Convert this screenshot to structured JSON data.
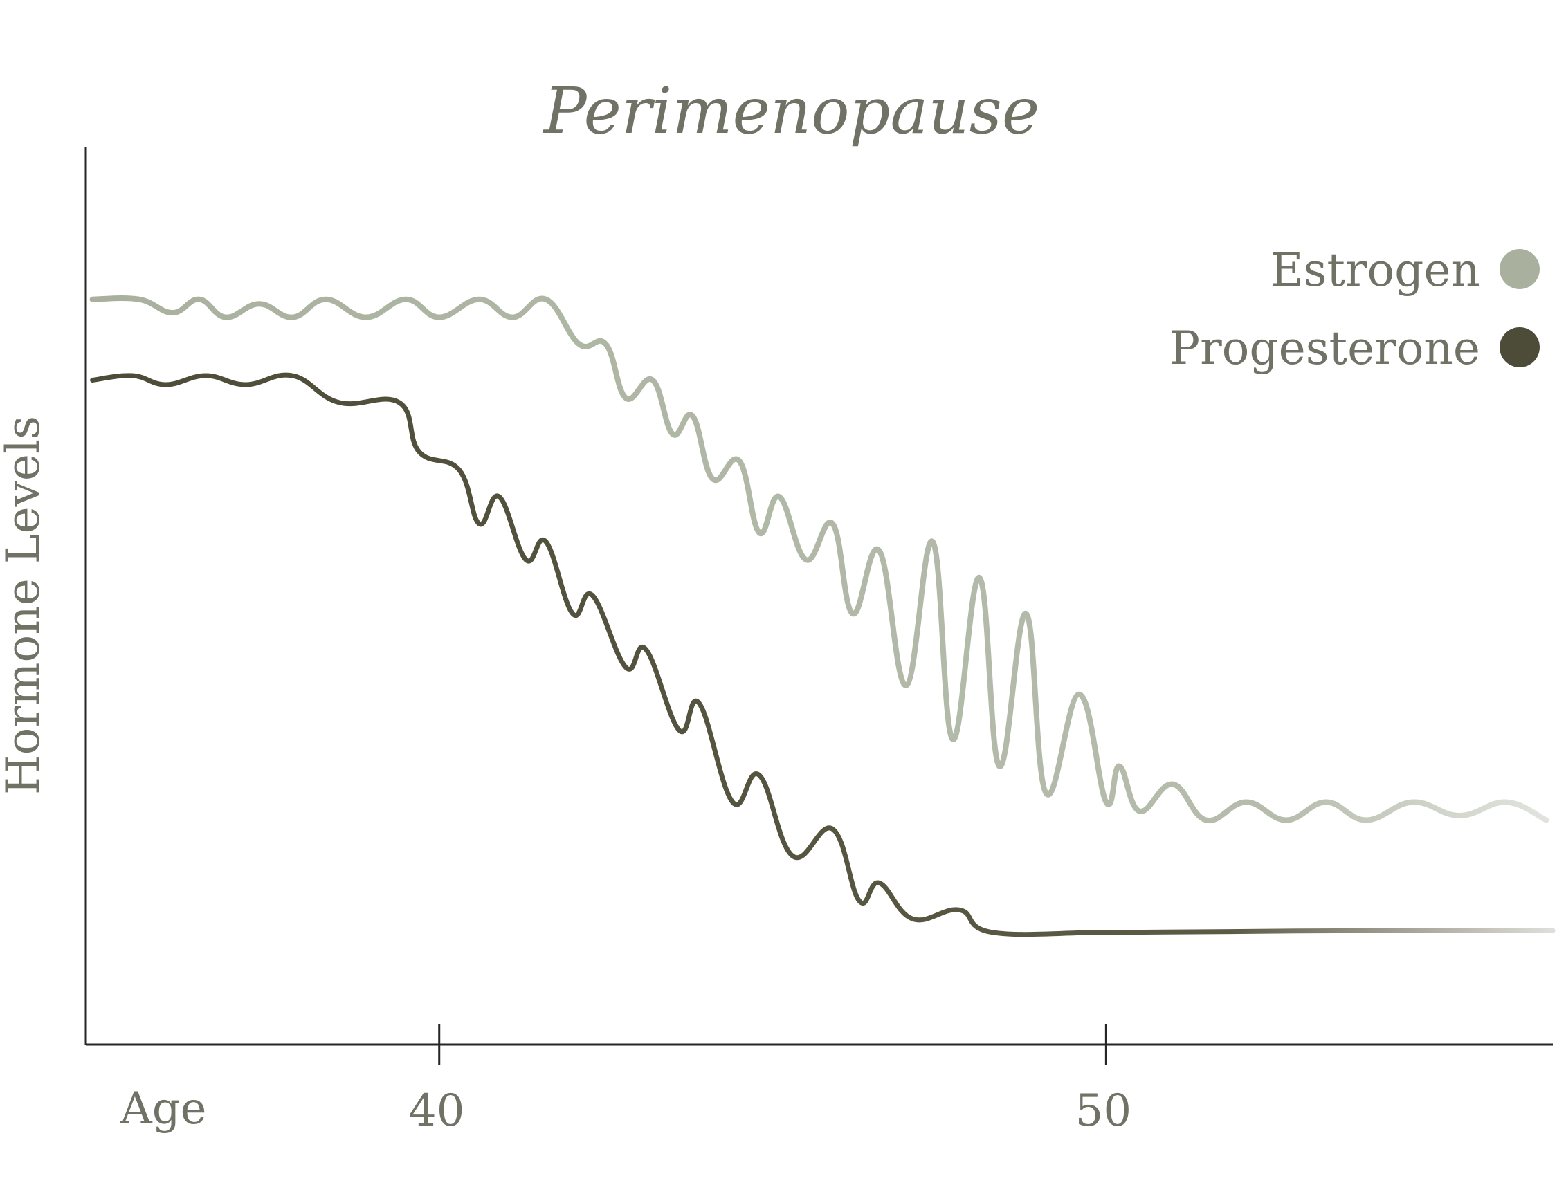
{
  "chart_data": {
    "type": "line",
    "title": "Perimenopause",
    "xlabel": "Age",
    "ylabel": "Hormone Levels",
    "x_ticks": [
      40,
      50
    ],
    "xlim": [
      34.7,
      56.7
    ],
    "ylim": [
      0,
      100
    ],
    "grid": false,
    "legend_position": "top-right",
    "series": [
      {
        "name": "Estrogen",
        "color": "#a9b19e",
        "points": [
          [
            34.8,
            83
          ],
          [
            35.5,
            83
          ],
          [
            36.0,
            81.5
          ],
          [
            36.4,
            83
          ],
          [
            36.8,
            81
          ],
          [
            37.3,
            82.5
          ],
          [
            37.8,
            81
          ],
          [
            38.3,
            83
          ],
          [
            38.9,
            81
          ],
          [
            39.5,
            83
          ],
          [
            40.0,
            81
          ],
          [
            40.6,
            83
          ],
          [
            41.1,
            81
          ],
          [
            41.6,
            83
          ],
          [
            42.1,
            78
          ],
          [
            42.5,
            78
          ],
          [
            42.8,
            72
          ],
          [
            43.2,
            74
          ],
          [
            43.5,
            68
          ],
          [
            43.8,
            70
          ],
          [
            44.1,
            63
          ],
          [
            44.5,
            65
          ],
          [
            44.8,
            57
          ],
          [
            45.1,
            61
          ],
          [
            45.5,
            54
          ],
          [
            45.9,
            58
          ],
          [
            46.2,
            48
          ],
          [
            46.6,
            55
          ],
          [
            47.0,
            40
          ],
          [
            47.4,
            56
          ],
          [
            47.7,
            34
          ],
          [
            48.1,
            52
          ],
          [
            48.4,
            31
          ],
          [
            48.8,
            48
          ],
          [
            49.1,
            28
          ],
          [
            49.6,
            39
          ],
          [
            50.0,
            27
          ],
          [
            50.2,
            31
          ],
          [
            50.5,
            26
          ],
          [
            51.0,
            29
          ],
          [
            51.5,
            25
          ],
          [
            52.1,
            27
          ],
          [
            52.7,
            25
          ],
          [
            53.3,
            27
          ],
          [
            53.9,
            25
          ],
          [
            54.6,
            27
          ],
          [
            55.3,
            25.5
          ],
          [
            56.0,
            27
          ],
          [
            56.6,
            25
          ]
        ]
      },
      {
        "name": "Progesterone",
        "color": "#4d4c38",
        "points": [
          [
            34.8,
            74
          ],
          [
            35.4,
            74.5
          ],
          [
            35.9,
            73.5
          ],
          [
            36.5,
            74.5
          ],
          [
            37.1,
            73.5
          ],
          [
            37.8,
            74.5
          ],
          [
            38.5,
            71.5
          ],
          [
            39.4,
            71.5
          ],
          [
            39.7,
            66
          ],
          [
            40.3,
            64
          ],
          [
            40.6,
            58
          ],
          [
            40.9,
            61
          ],
          [
            41.3,
            54
          ],
          [
            41.6,
            56
          ],
          [
            42.0,
            48
          ],
          [
            42.3,
            50
          ],
          [
            42.8,
            42
          ],
          [
            43.1,
            44
          ],
          [
            43.6,
            35
          ],
          [
            43.9,
            38
          ],
          [
            44.4,
            27
          ],
          [
            44.8,
            30
          ],
          [
            45.3,
            21
          ],
          [
            45.9,
            24
          ],
          [
            46.3,
            16
          ],
          [
            46.6,
            18
          ],
          [
            47.1,
            14
          ],
          [
            47.8,
            15
          ],
          [
            48.3,
            12.5
          ],
          [
            50.0,
            12.5
          ],
          [
            52.0,
            12.6
          ],
          [
            54.0,
            12.7
          ],
          [
            56.7,
            12.7
          ]
        ]
      }
    ]
  }
}
